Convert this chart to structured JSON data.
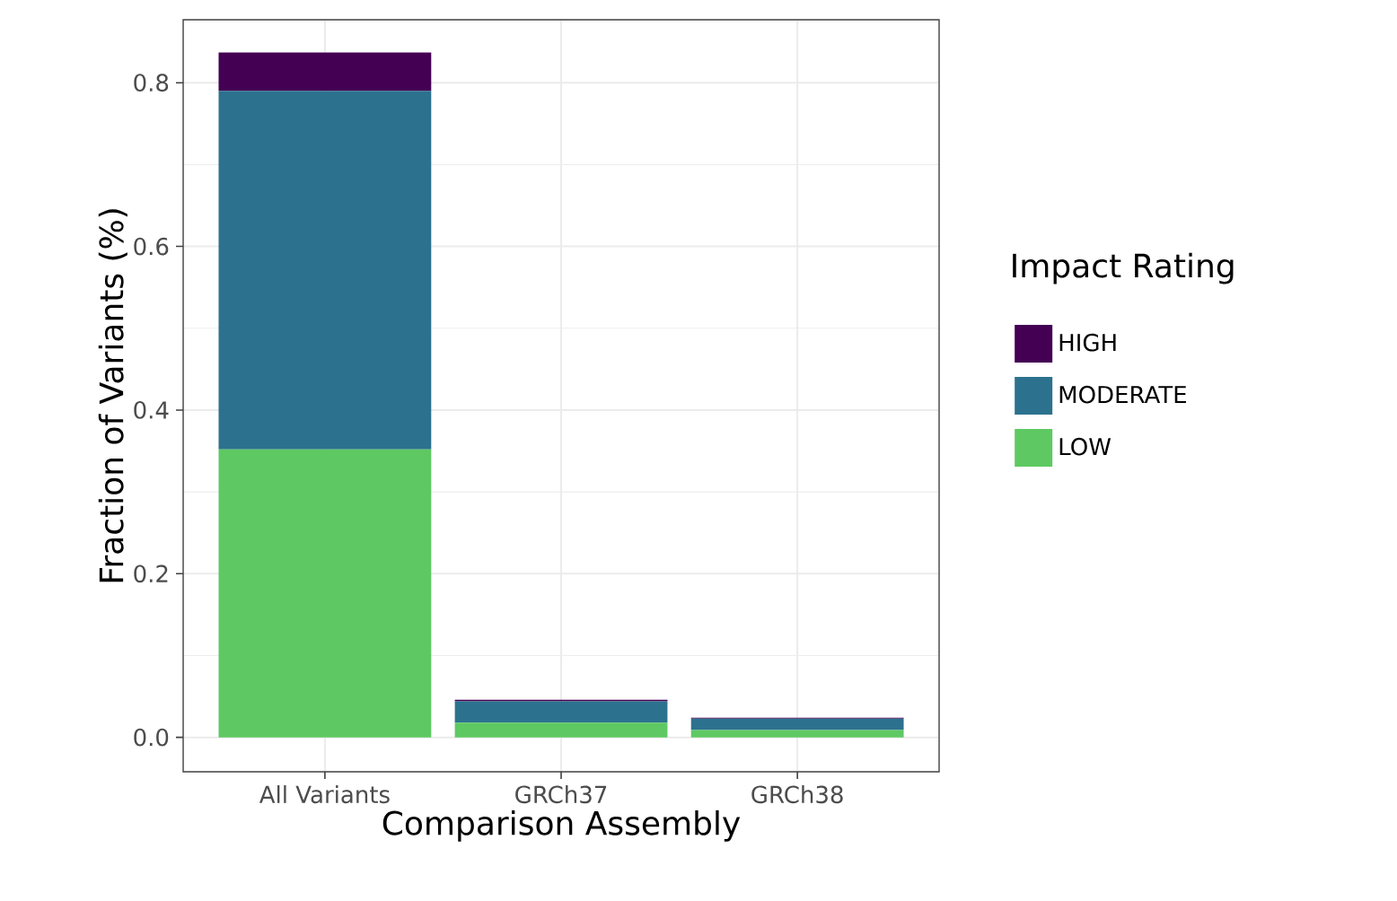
{
  "chart_data": {
    "type": "bar",
    "stacked": true,
    "xlabel": "Comparison Assembly",
    "ylabel": "Fraction of Variants (%)",
    "legend_title": "Impact Rating",
    "categories": [
      "All Variants",
      "GRCh37",
      "GRCh38"
    ],
    "series": [
      {
        "name": "LOW",
        "color": "#5ec962",
        "values": [
          0.352,
          0.018,
          0.009
        ]
      },
      {
        "name": "MODERATE",
        "color": "#2c728e",
        "values": [
          0.438,
          0.026,
          0.014
        ]
      },
      {
        "name": "HIGH",
        "color": "#440154",
        "values": [
          0.047,
          0.002,
          0.001
        ]
      }
    ],
    "ylim": [
      -0.042,
      0.877
    ],
    "yticks": [
      {
        "value": 0,
        "label": "0.0"
      },
      {
        "value": 0.2,
        "label": "0.2"
      },
      {
        "value": 0.4,
        "label": "0.4"
      },
      {
        "value": 0.6,
        "label": "0.6"
      },
      {
        "value": 0.8,
        "label": "0.8"
      }
    ],
    "grid": true,
    "legend": "right"
  }
}
